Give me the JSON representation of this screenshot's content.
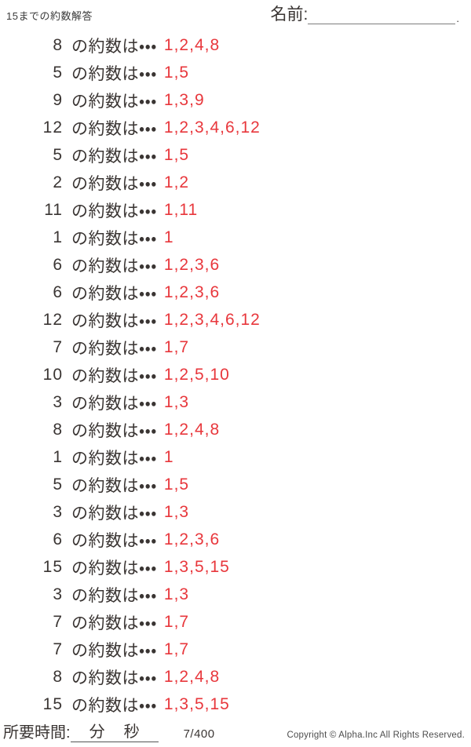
{
  "page": {
    "title": "15までの約数解答",
    "name_label": "名前:",
    "name_line_end": ".",
    "row_label": "の約数は・・・"
  },
  "rows": [
    {
      "number": "8",
      "divisors": "1,2,4,8"
    },
    {
      "number": "5",
      "divisors": "1,5"
    },
    {
      "number": "9",
      "divisors": "1,3,9"
    },
    {
      "number": "12",
      "divisors": "1,2,3,4,6,12"
    },
    {
      "number": "5",
      "divisors": "1,5"
    },
    {
      "number": "2",
      "divisors": "1,2"
    },
    {
      "number": "11",
      "divisors": "1,11"
    },
    {
      "number": "1",
      "divisors": "1"
    },
    {
      "number": "6",
      "divisors": "1,2,3,6"
    },
    {
      "number": "6",
      "divisors": "1,2,3,6"
    },
    {
      "number": "12",
      "divisors": "1,2,3,4,6,12"
    },
    {
      "number": "7",
      "divisors": "1,7"
    },
    {
      "number": "10",
      "divisors": "1,2,5,10"
    },
    {
      "number": "3",
      "divisors": "1,3"
    },
    {
      "number": "8",
      "divisors": "1,2,4,8"
    },
    {
      "number": "1",
      "divisors": "1"
    },
    {
      "number": "5",
      "divisors": "1,5"
    },
    {
      "number": "3",
      "divisors": "1,3"
    },
    {
      "number": "6",
      "divisors": "1,2,3,6"
    },
    {
      "number": "15",
      "divisors": "1,3,5,15"
    },
    {
      "number": "3",
      "divisors": "1,3"
    },
    {
      "number": "7",
      "divisors": "1,7"
    },
    {
      "number": "7",
      "divisors": "1,7"
    },
    {
      "number": "8",
      "divisors": "1,2,4,8"
    },
    {
      "number": "15",
      "divisors": "1,3,5,15"
    }
  ],
  "footer": {
    "time_label": "所要時間:",
    "minutes_label": "分",
    "seconds_label": "秒",
    "page_number": "7/400",
    "copyright": "Copyright ©  Alpha.Inc All Rights Reserved."
  },
  "colors": {
    "text": "#3a3533",
    "answer_red": "#e8373c",
    "muted_gray": "#4d4d4d"
  }
}
